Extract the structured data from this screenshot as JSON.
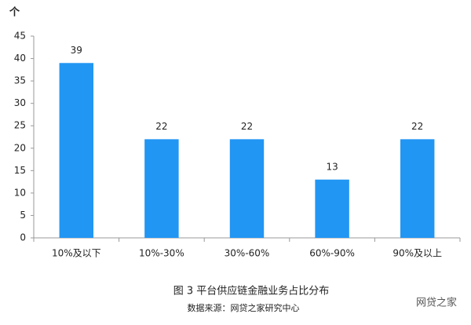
{
  "chart_data": {
    "type": "bar",
    "title": "图 3  平台供应链金融业务占比分布",
    "source": "数据来源：网贷之家研究中心",
    "y_unit_label": "个",
    "watermark": "网贷之家",
    "categories": [
      "10%及以下",
      "10%-30%",
      "30%-60%",
      "60%-90%",
      "90%及以上"
    ],
    "values": [
      39,
      22,
      22,
      13,
      22
    ],
    "color": "#2196f3",
    "ylim": [
      0,
      45
    ],
    "yticks": [
      0,
      5,
      10,
      15,
      20,
      25,
      30,
      35,
      40,
      45
    ],
    "grid": false
  }
}
